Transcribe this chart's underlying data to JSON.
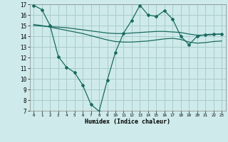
{
  "title": "",
  "xlabel": "Humidex (Indice chaleur)",
  "bg_color": "#ceeaea",
  "grid_color": "#aacccc",
  "line_color": "#1a6b60",
  "xlim": [
    -0.5,
    23.5
  ],
  "ylim": [
    7,
    17
  ],
  "yticks": [
    7,
    8,
    9,
    10,
    11,
    12,
    13,
    14,
    15,
    16,
    17
  ],
  "xticks": [
    0,
    1,
    2,
    3,
    4,
    5,
    6,
    7,
    8,
    9,
    10,
    11,
    12,
    13,
    14,
    15,
    16,
    17,
    18,
    19,
    20,
    21,
    22,
    23
  ],
  "line1_x": [
    0,
    1,
    2,
    3,
    4,
    5,
    6,
    7,
    8,
    9,
    10,
    11,
    12,
    13,
    14,
    15,
    16,
    17,
    18,
    19,
    20,
    21,
    22,
    23
  ],
  "line1_y": [
    16.9,
    16.5,
    15.0,
    12.1,
    11.1,
    10.6,
    9.4,
    7.6,
    6.95,
    9.85,
    12.5,
    14.3,
    15.5,
    16.9,
    16.0,
    15.85,
    16.4,
    15.6,
    14.0,
    13.2,
    14.0,
    14.15,
    14.2,
    14.2
  ],
  "line2_x": [
    0,
    1,
    2,
    3,
    4,
    5,
    6,
    7,
    8,
    9,
    10,
    11,
    12,
    13,
    14,
    15,
    16,
    17,
    18,
    19,
    20,
    21,
    22,
    23
  ],
  "line2_y": [
    15.0,
    14.95,
    14.9,
    14.85,
    14.8,
    14.7,
    14.6,
    14.5,
    14.4,
    14.3,
    14.25,
    14.25,
    14.3,
    14.35,
    14.4,
    14.45,
    14.45,
    14.4,
    14.35,
    14.2,
    14.1,
    14.1,
    14.15,
    14.2
  ],
  "line3_x": [
    0,
    1,
    2,
    3,
    4,
    5,
    6,
    7,
    8,
    9,
    10,
    11,
    12,
    13,
    14,
    15,
    16,
    17,
    18,
    19,
    20,
    21,
    22,
    23
  ],
  "line3_y": [
    15.1,
    15.0,
    14.85,
    14.7,
    14.55,
    14.4,
    14.25,
    14.05,
    13.85,
    13.65,
    13.5,
    13.45,
    13.45,
    13.5,
    13.55,
    13.65,
    13.75,
    13.8,
    13.7,
    13.45,
    13.35,
    13.4,
    13.5,
    13.55
  ]
}
